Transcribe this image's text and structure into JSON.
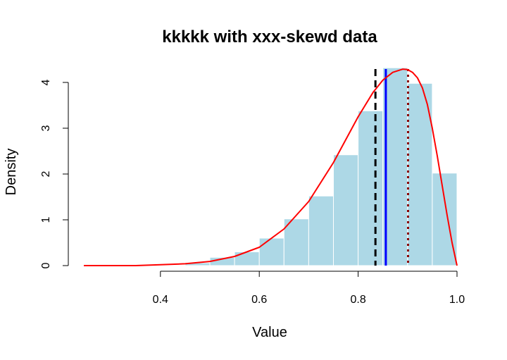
{
  "chart_data": {
    "type": "histogram",
    "title": "kkkkk with xxx-skewd data",
    "xlabel": "Value",
    "ylabel": "Density",
    "xlim": [
      0.245,
      1.0
    ],
    "ylim": [
      0,
      4.3
    ],
    "x_ticks": [
      0.4,
      0.6,
      0.8,
      1.0
    ],
    "x_tick_labels": [
      "0.4",
      "0.6",
      "0.8",
      "1.0"
    ],
    "y_ticks": [
      0,
      1,
      2,
      3,
      4
    ],
    "y_tick_labels": [
      "0",
      "1",
      "2",
      "3",
      "4"
    ],
    "grid": false,
    "bins": [
      {
        "x0": 0.45,
        "x1": 0.5,
        "density": 0.06
      },
      {
        "x0": 0.5,
        "x1": 0.55,
        "density": 0.18
      },
      {
        "x0": 0.55,
        "x1": 0.6,
        "density": 0.3
      },
      {
        "x0": 0.6,
        "x1": 0.65,
        "density": 0.6
      },
      {
        "x0": 0.65,
        "x1": 0.7,
        "density": 1.02
      },
      {
        "x0": 0.7,
        "x1": 0.75,
        "density": 1.52
      },
      {
        "x0": 0.75,
        "x1": 0.8,
        "density": 2.42
      },
      {
        "x0": 0.8,
        "x1": 0.85,
        "density": 3.38
      },
      {
        "x0": 0.85,
        "x1": 0.9,
        "density": 4.32
      },
      {
        "x0": 0.9,
        "x1": 0.95,
        "density": 3.98
      },
      {
        "x0": 0.95,
        "x1": 1.0,
        "density": 2.02
      }
    ],
    "density_curve": {
      "x": [
        0.245,
        0.3,
        0.35,
        0.4,
        0.45,
        0.5,
        0.55,
        0.6,
        0.65,
        0.7,
        0.75,
        0.8,
        0.83,
        0.85,
        0.87,
        0.89,
        0.9,
        0.91,
        0.92,
        0.93,
        0.94,
        0.95,
        0.96,
        0.97,
        0.98,
        0.99,
        1.0
      ],
      "y": [
        0.0,
        0.0,
        0.0,
        0.02,
        0.04,
        0.09,
        0.2,
        0.4,
        0.8,
        1.4,
        2.25,
        3.25,
        3.78,
        4.05,
        4.22,
        4.29,
        4.28,
        4.22,
        4.1,
        3.88,
        3.52,
        3.0,
        2.4,
        1.75,
        1.1,
        0.5,
        0.0
      ]
    },
    "vertical_lines": [
      {
        "x": 0.835,
        "color": "#000000",
        "style": "dashed"
      },
      {
        "x": 0.856,
        "color": "#0000ff",
        "style": "solid"
      },
      {
        "x": 0.901,
        "color": "#8b0000",
        "style": "dotted"
      }
    ],
    "colors": {
      "bar_fill": "#add8e6",
      "bar_border": "#ffffff",
      "curve": "#ff0000"
    }
  }
}
